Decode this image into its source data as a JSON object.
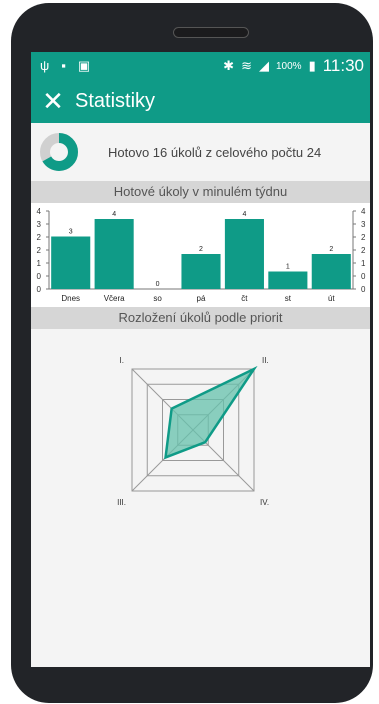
{
  "status_bar": {
    "left_icons": [
      "usb-icon",
      "sd-card-icon",
      "no-sim-icon"
    ],
    "right_icons": [
      "bluetooth-icon",
      "wifi-icon",
      "signal-icon",
      "battery-icon"
    ],
    "battery": "100%",
    "time": "11:30"
  },
  "app_bar": {
    "title": "Statistiky",
    "close_icon": "close-icon"
  },
  "summary": {
    "text": "Hotovo 16 úkolů z celového počtu 24",
    "done": 16,
    "total": 24
  },
  "sections": {
    "weekly_title": "Hotové úkoly v minulém týdnu",
    "priority_title": "Rozložení úkolů podle priorit"
  },
  "colors": {
    "accent": "#0f9b87",
    "radar_fill": "#66c2ac",
    "grid": "#999999"
  },
  "chart_data": [
    {
      "type": "bar",
      "categories": [
        "Dnes",
        "Včera",
        "so",
        "pá",
        "čt",
        "st",
        "út"
      ],
      "values": [
        3,
        4,
        0,
        2,
        4,
        1,
        2
      ],
      "ylim": [
        0,
        4
      ],
      "y_ticks": [
        "0",
        "0",
        "1",
        "2",
        "2",
        "3",
        "4"
      ],
      "xlabel": "",
      "ylabel": ""
    },
    {
      "type": "radar",
      "categories": [
        "I.",
        "II.",
        "IV.",
        "III."
      ],
      "values": [
        0.35,
        1.0,
        0.2,
        0.45
      ],
      "rings": 4
    }
  ]
}
